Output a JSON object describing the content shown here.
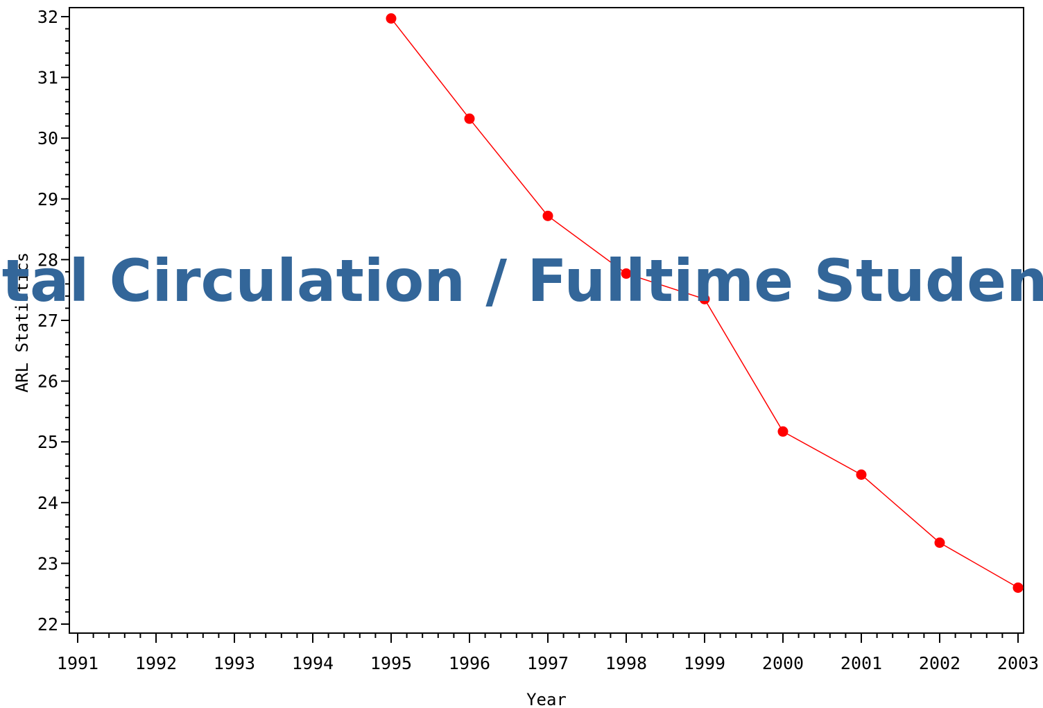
{
  "overlay_title": "Total Circulation / Fulltime Students",
  "colors": {
    "series": "#ff0000",
    "title": "#336699",
    "axis": "#000000",
    "background": "#ffffff"
  },
  "chart_data": {
    "type": "line",
    "title": "",
    "xlabel": "Year",
    "ylabel": "ARL Statistics",
    "xlim": [
      1991,
      2003
    ],
    "ylim": [
      22,
      32
    ],
    "x_ticks": [
      "1991",
      "1992",
      "1993",
      "1994",
      "1995",
      "1996",
      "1997",
      "1998",
      "1999",
      "2000",
      "2001",
      "2002",
      "2003"
    ],
    "y_ticks": [
      "22",
      "23",
      "24",
      "25",
      "26",
      "27",
      "28",
      "29",
      "30",
      "31",
      "32"
    ],
    "grid": false,
    "legend": "none",
    "series": [
      {
        "x": [
          1995,
          1996,
          1997,
          1998,
          1999,
          2000,
          2001,
          2002,
          2003
        ],
        "values": [
          31.97,
          30.32,
          28.72,
          27.77,
          27.35,
          25.17,
          24.46,
          23.34,
          22.6
        ],
        "marker": "dot",
        "color": "#ff0000"
      }
    ]
  }
}
